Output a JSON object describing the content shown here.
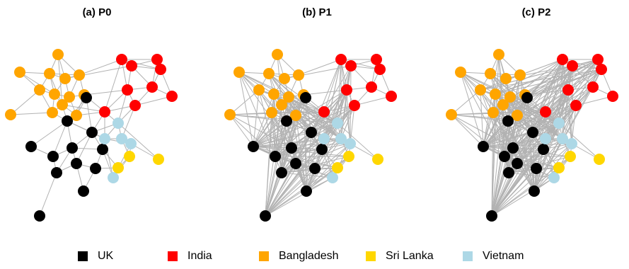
{
  "colors": {
    "UK": "#000000",
    "India": "#ff0000",
    "Bangladesh": "#ffa500",
    "Sri Lanka": "#ffd700",
    "Vietnam": "#add8e6",
    "edge": "#b2b2b2"
  },
  "panels": [
    {
      "title": "(a) P0"
    },
    {
      "title": "(b) P1"
    },
    {
      "title": "(c) P2"
    }
  ],
  "legend": [
    {
      "label": "UK",
      "group": "UK"
    },
    {
      "label": "India",
      "group": "India"
    },
    {
      "label": "Bangladesh",
      "group": "Bangladesh"
    },
    {
      "label": "Sri Lanka",
      "group": "Sri Lanka"
    },
    {
      "label": "Vietnam",
      "group": "Vietnam"
    }
  ],
  "nodes": [
    {
      "id": "B1",
      "group": "Bangladesh"
    },
    {
      "id": "B2",
      "group": "Bangladesh"
    },
    {
      "id": "B3",
      "group": "Bangladesh"
    },
    {
      "id": "B4",
      "group": "Bangladesh"
    },
    {
      "id": "B5",
      "group": "Bangladesh"
    },
    {
      "id": "B6",
      "group": "Bangladesh"
    },
    {
      "id": "B7",
      "group": "Bangladesh"
    },
    {
      "id": "B8",
      "group": "Bangladesh"
    },
    {
      "id": "B9",
      "group": "Bangladesh"
    },
    {
      "id": "B10",
      "group": "Bangladesh"
    },
    {
      "id": "B11",
      "group": "Bangladesh"
    },
    {
      "id": "B12",
      "group": "Bangladesh"
    },
    {
      "id": "B13",
      "group": "Bangladesh"
    },
    {
      "id": "I1",
      "group": "India"
    },
    {
      "id": "I2",
      "group": "India"
    },
    {
      "id": "I3",
      "group": "India"
    },
    {
      "id": "I4",
      "group": "India"
    },
    {
      "id": "I5",
      "group": "India"
    },
    {
      "id": "I6",
      "group": "India"
    },
    {
      "id": "I7",
      "group": "India"
    },
    {
      "id": "I8",
      "group": "India"
    },
    {
      "id": "I9",
      "group": "India"
    },
    {
      "id": "U1",
      "group": "UK"
    },
    {
      "id": "U2",
      "group": "UK"
    },
    {
      "id": "U3",
      "group": "UK"
    },
    {
      "id": "U4",
      "group": "UK"
    },
    {
      "id": "U5",
      "group": "UK"
    },
    {
      "id": "U6",
      "group": "UK"
    },
    {
      "id": "U7",
      "group": "UK"
    },
    {
      "id": "U8",
      "group": "UK"
    },
    {
      "id": "U9",
      "group": "UK"
    },
    {
      "id": "U10",
      "group": "UK"
    },
    {
      "id": "U11",
      "group": "UK"
    },
    {
      "id": "U12",
      "group": "UK"
    },
    {
      "id": "V1",
      "group": "Vietnam"
    },
    {
      "id": "V2",
      "group": "Vietnam"
    },
    {
      "id": "V3",
      "group": "Vietnam"
    },
    {
      "id": "V4",
      "group": "Vietnam"
    },
    {
      "id": "V5",
      "group": "Vietnam"
    },
    {
      "id": "S1",
      "group": "Sri Lanka"
    },
    {
      "id": "S2",
      "group": "Sri Lanka"
    },
    {
      "id": "S3",
      "group": "Sri Lanka"
    }
  ]
}
